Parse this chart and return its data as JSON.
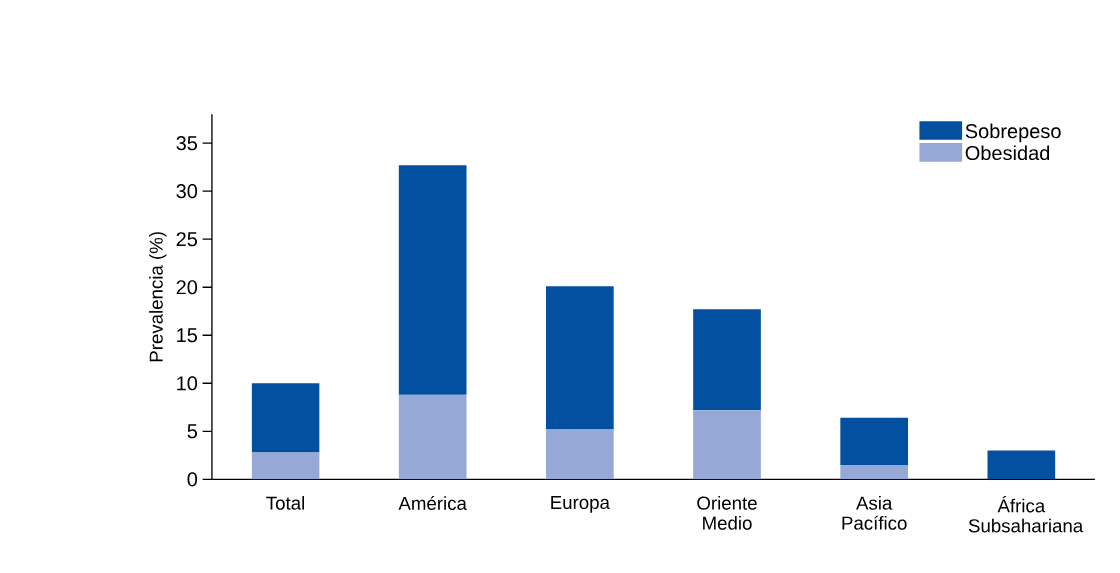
{
  "chart_data": {
    "type": "bar",
    "stacked": true,
    "ylabel": "Prevalencia (%)",
    "categories": [
      "Total",
      "América",
      "Europa",
      "Oriente Medio",
      "Asia Pacífico",
      "África Subsahariana"
    ],
    "series": [
      {
        "name": "Obesidad",
        "color": "#96a9d6",
        "values": [
          2.8,
          8.8,
          5.2,
          7.2,
          1.5,
          0
        ]
      },
      {
        "name": "Sobrepeso",
        "color": "#0350a0",
        "values": [
          7.2,
          23.9,
          14.9,
          10.5,
          4.9,
          3.0
        ]
      }
    ],
    "ylim": [
      0,
      38
    ],
    "yticks": [
      0,
      5,
      10,
      15,
      20,
      25,
      30,
      35
    ],
    "legend": "top right"
  }
}
